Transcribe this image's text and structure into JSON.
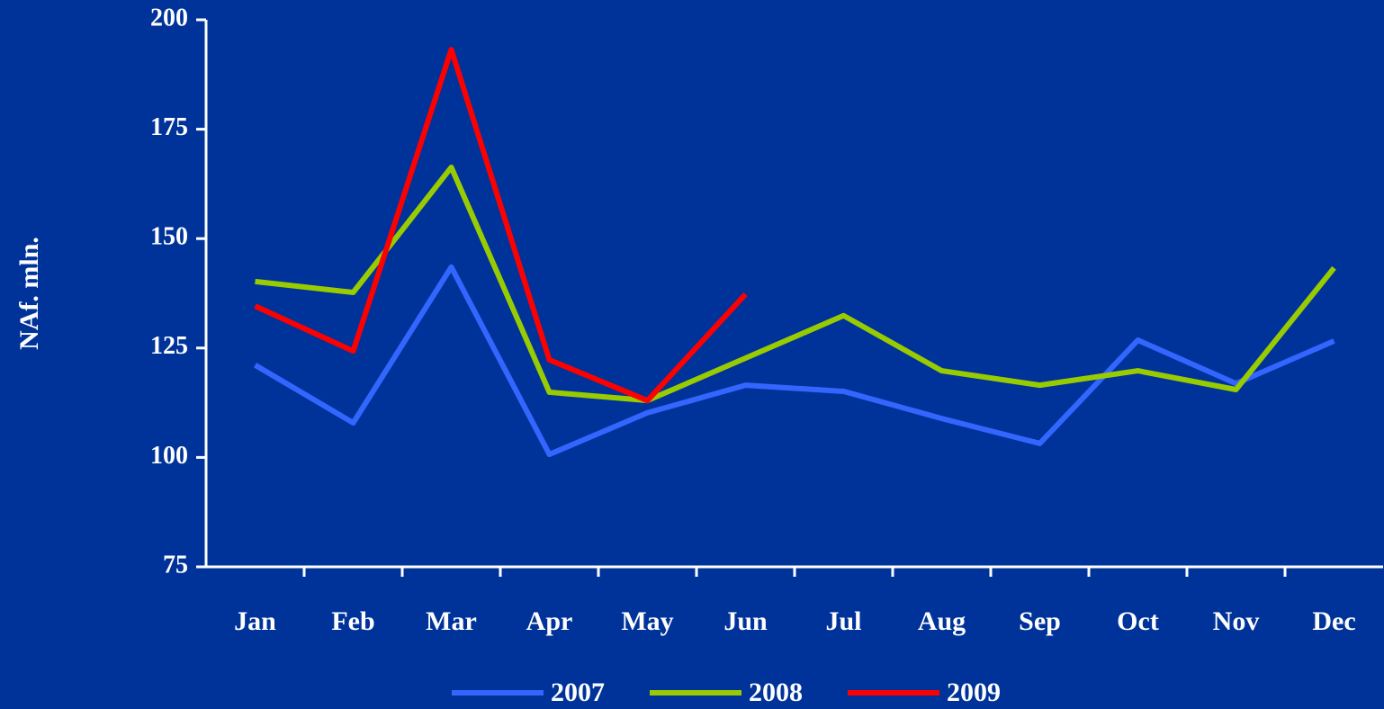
{
  "chart_data": {
    "type": "line",
    "y_label": "NAf. mln.",
    "categories": [
      "Jan",
      "Feb",
      "Mar",
      "Apr",
      "May",
      "Jun",
      "Jul",
      "Aug",
      "Sep",
      "Oct",
      "Nov",
      "Dec"
    ],
    "series": [
      {
        "name": "2007",
        "color": "#3366ff",
        "values": [
          121.1,
          107.9,
          143.5,
          100.7,
          110.2,
          116.5,
          115.1,
          108.9,
          103.2,
          126.8,
          116.9,
          126.6
        ]
      },
      {
        "name": "2008",
        "color": "#99cc00",
        "values": [
          140.2,
          137.7,
          166.3,
          114.9,
          113.0,
          122.7,
          132.4,
          119.8,
          116.5,
          119.8,
          115.5,
          143.3
        ]
      },
      {
        "name": "2009",
        "color": "#ff0000",
        "values": [
          134.6,
          124.3,
          193.2,
          122.3,
          113.0,
          137.3,
          null,
          null,
          null,
          null,
          null,
          null
        ]
      }
    ],
    "ylim": [
      75,
      200
    ],
    "yticks": [
      75,
      100,
      125,
      150,
      175,
      200
    ],
    "grid": false,
    "legend": "bottom"
  }
}
